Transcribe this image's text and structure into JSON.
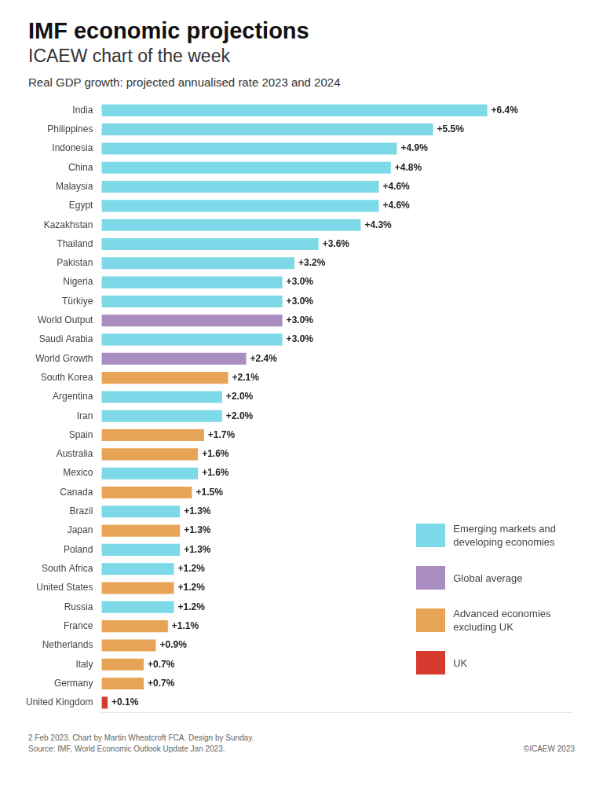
{
  "chart_data": {
    "type": "bar",
    "orientation": "horizontal",
    "title": "IMF economic projections",
    "subtitle": [
      "ICAEW chart of the week",
      "Real GDP growth: projected annualised rate 2023 and 2024"
    ],
    "annotations": [
      "2 Feb 2023. Chart by Martin Wheatcroft FCA. Design by Sunday.\nSource: IMF, World Economic Outlook Update Jan 2023.",
      "©ICAEW 2023"
    ],
    "categories": [
      "India",
      "Philippines",
      "Indonesia",
      "China",
      "Malaysia",
      "Egypt",
      "Kazakhstan",
      "Thailand",
      "Pakistan",
      "Nigeria",
      "Türkiye",
      "World Output",
      "Saudi Arabia",
      "World Growth",
      "South Korea",
      "Argentina",
      "Iran",
      "Spain",
      "Australia",
      "Mexico",
      "Canada",
      "Brazil",
      "Japan",
      "Poland",
      "South Africa",
      "United States",
      "Russia",
      "France",
      "Netherlands",
      "Italy",
      "Germany",
      "United Kingdom"
    ],
    "series": [
      {
        "name": "Emerging markets and\ndeveloping economies",
        "color": "#7DD8E8",
        "values": [
          6.4,
          5.5,
          4.9,
          4.8,
          4.6,
          4.6,
          4.3,
          3.6,
          3.2,
          3.0,
          3.0,
          null,
          3.0,
          null,
          null,
          2.0,
          2.0,
          null,
          null,
          1.6,
          null,
          1.3,
          null,
          1.3,
          1.2,
          null,
          1.2,
          null,
          null,
          null,
          null,
          null
        ],
        "value_labels": [
          "+6.4%",
          "+5.5%",
          "+4.9%",
          "+4.8%",
          "+4.6%",
          "+4.6%",
          "+4.3%",
          "+3.6%",
          "+3.2%",
          "+3.0%",
          "+3.0%",
          null,
          "+3.0%",
          null,
          null,
          "+2.0%",
          "+2.0%",
          null,
          null,
          "+1.6%",
          null,
          "+1.3%",
          null,
          "+1.3%",
          "+1.2%",
          null,
          "+1.2%",
          null,
          null,
          null,
          null,
          null
        ]
      },
      {
        "name": "Global average",
        "color": "#A98DC0",
        "values": [
          null,
          null,
          null,
          null,
          null,
          null,
          null,
          null,
          null,
          null,
          null,
          3.0,
          null,
          2.4,
          null,
          null,
          null,
          null,
          null,
          null,
          null,
          null,
          null,
          null,
          null,
          null,
          null,
          null,
          null,
          null,
          null,
          null
        ],
        "value_labels": [
          null,
          null,
          null,
          null,
          null,
          null,
          null,
          null,
          null,
          null,
          null,
          "+3.0%",
          null,
          "+2.4%",
          null,
          null,
          null,
          null,
          null,
          null,
          null,
          null,
          null,
          null,
          null,
          null,
          null,
          null,
          null,
          null,
          null,
          null
        ]
      },
      {
        "name": "Advanced economies\nexcluding UK",
        "color": "#E8A456",
        "values": [
          null,
          null,
          null,
          null,
          null,
          null,
          null,
          null,
          null,
          null,
          null,
          null,
          null,
          null,
          2.1,
          null,
          null,
          1.7,
          1.6,
          null,
          1.5,
          null,
          1.3,
          null,
          null,
          1.2,
          null,
          1.1,
          0.9,
          0.7,
          0.7,
          null
        ],
        "value_labels": [
          null,
          null,
          null,
          null,
          null,
          null,
          null,
          null,
          null,
          null,
          null,
          null,
          null,
          null,
          "+2.1%",
          null,
          null,
          "+1.7%",
          "+1.6%",
          null,
          "+1.5%",
          null,
          "+1.3%",
          null,
          null,
          "+1.2%",
          null,
          "+1.1%",
          "+0.9%",
          "+0.7%",
          "+0.7%",
          null
        ]
      },
      {
        "name": "UK",
        "color": "#D63B2F",
        "values": [
          null,
          null,
          null,
          null,
          null,
          null,
          null,
          null,
          null,
          null,
          null,
          null,
          null,
          null,
          null,
          null,
          null,
          null,
          null,
          null,
          null,
          null,
          null,
          null,
          null,
          null,
          null,
          null,
          null,
          null,
          null,
          0.1
        ],
        "value_labels": [
          null,
          null,
          null,
          null,
          null,
          null,
          null,
          null,
          null,
          null,
          null,
          null,
          null,
          null,
          null,
          null,
          null,
          null,
          null,
          null,
          null,
          null,
          null,
          null,
          null,
          null,
          null,
          null,
          null,
          null,
          null,
          "+0.1%"
        ]
      }
    ],
    "stacked": true,
    "xlim": [
      0,
      7.8
    ],
    "tick_labels": "y",
    "grid": false,
    "legend": "lower right",
    "data_labels": true
  }
}
